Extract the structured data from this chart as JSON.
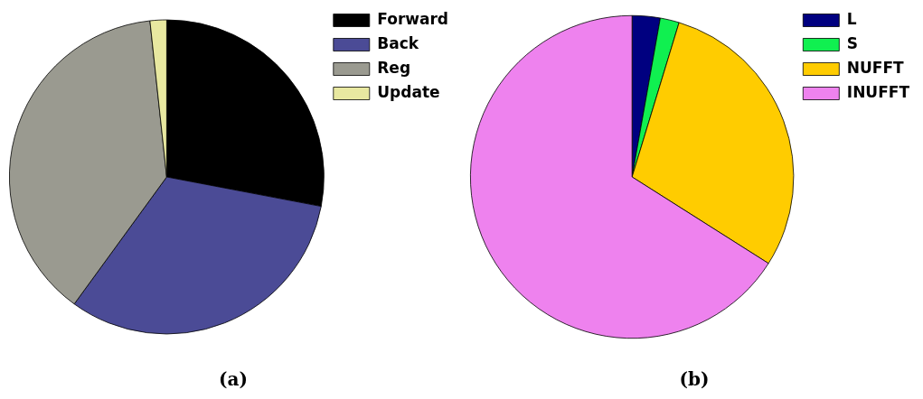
{
  "chart_data": [
    {
      "type": "pie",
      "title": "(a)",
      "categories": [
        "Forward",
        "Back",
        "Reg",
        "Update"
      ],
      "values": [
        28,
        32,
        38.3,
        1.7
      ],
      "colors": [
        "#000000",
        "#4b4b96",
        "#9a9a90",
        "#e8e8a0"
      ],
      "legend": "top right"
    },
    {
      "type": "pie",
      "title": "(b)",
      "categories": [
        "L",
        "S",
        "NUFFT",
        "INUFFT"
      ],
      "values": [
        2.8,
        1.9,
        29.3,
        66
      ],
      "colors": [
        "#000080",
        "#10f050",
        "#ffcc00",
        "#ee82ee"
      ],
      "legend": "top right"
    }
  ]
}
